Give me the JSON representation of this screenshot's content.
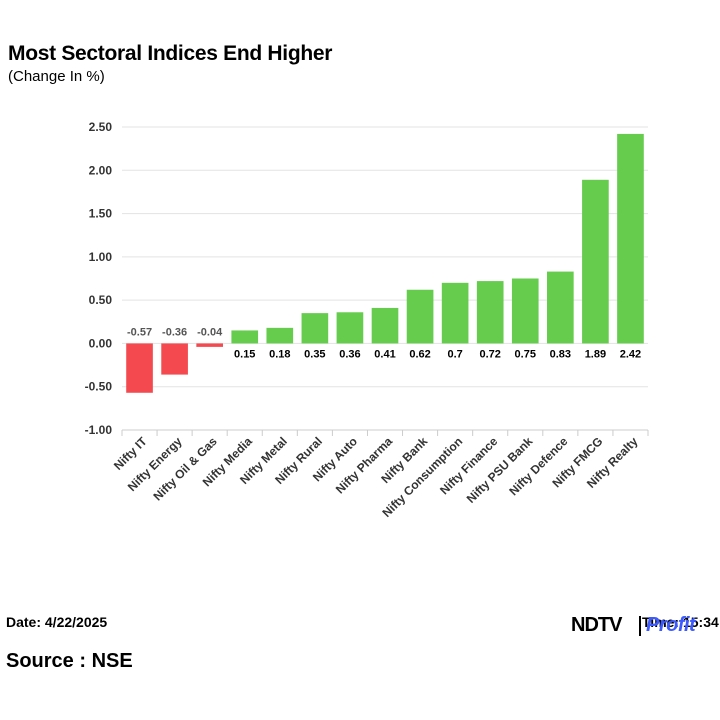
{
  "header": {
    "title": "Most Sectoral Indices End Higher",
    "subtitle": "(Change In %)"
  },
  "footer": {
    "date": "Date: 4/22/2025",
    "time": "Time: 15:34",
    "source": "Source : NSE",
    "brand_ndtv": "NDTV",
    "brand_profit": "Profit"
  },
  "colors": {
    "positive": "#66cc4d",
    "negative": "#f44a4f",
    "grid": "#e3e3e3",
    "brand_profit": "#3d5afe"
  },
  "chart_data": {
    "type": "bar",
    "title": "Most Sectoral Indices End Higher",
    "subtitle": "(Change In %)",
    "xlabel": "",
    "ylabel": "",
    "ylim": [
      -1.0,
      2.5
    ],
    "yticks": [
      "2.50",
      "2.00",
      "1.50",
      "1.00",
      "0.50",
      "0.00",
      "-0.50",
      "-1.00"
    ],
    "ytick_values": [
      2.5,
      2.0,
      1.5,
      1.0,
      0.5,
      0.0,
      -0.5,
      -1.0
    ],
    "grid": true,
    "categories": [
      "Nifty IT",
      "Nifty Energy",
      "Nifty Oil & Gas",
      "Nifty Media",
      "Nifty Metal",
      "Nifty Rural",
      "Nifty Auto",
      "Nifty Pharma",
      "Nifty Bank",
      "Nifty Consumption",
      "Nifty Finance",
      "Nifty PSU Bank",
      "Nifty Defence",
      "Nifty FMCG",
      "Nifty Realty"
    ],
    "values": [
      -0.57,
      -0.36,
      -0.04,
      0.15,
      0.18,
      0.35,
      0.36,
      0.41,
      0.62,
      0.7,
      0.72,
      0.75,
      0.83,
      1.89,
      2.42
    ],
    "labels": [
      "-0.57",
      "-0.36",
      "-0.04",
      "0.15",
      "0.18",
      "0.35",
      "0.36",
      "0.41",
      "0.62",
      "0.7",
      "0.72",
      "0.75",
      "0.83",
      "1.89",
      "2.42"
    ]
  }
}
